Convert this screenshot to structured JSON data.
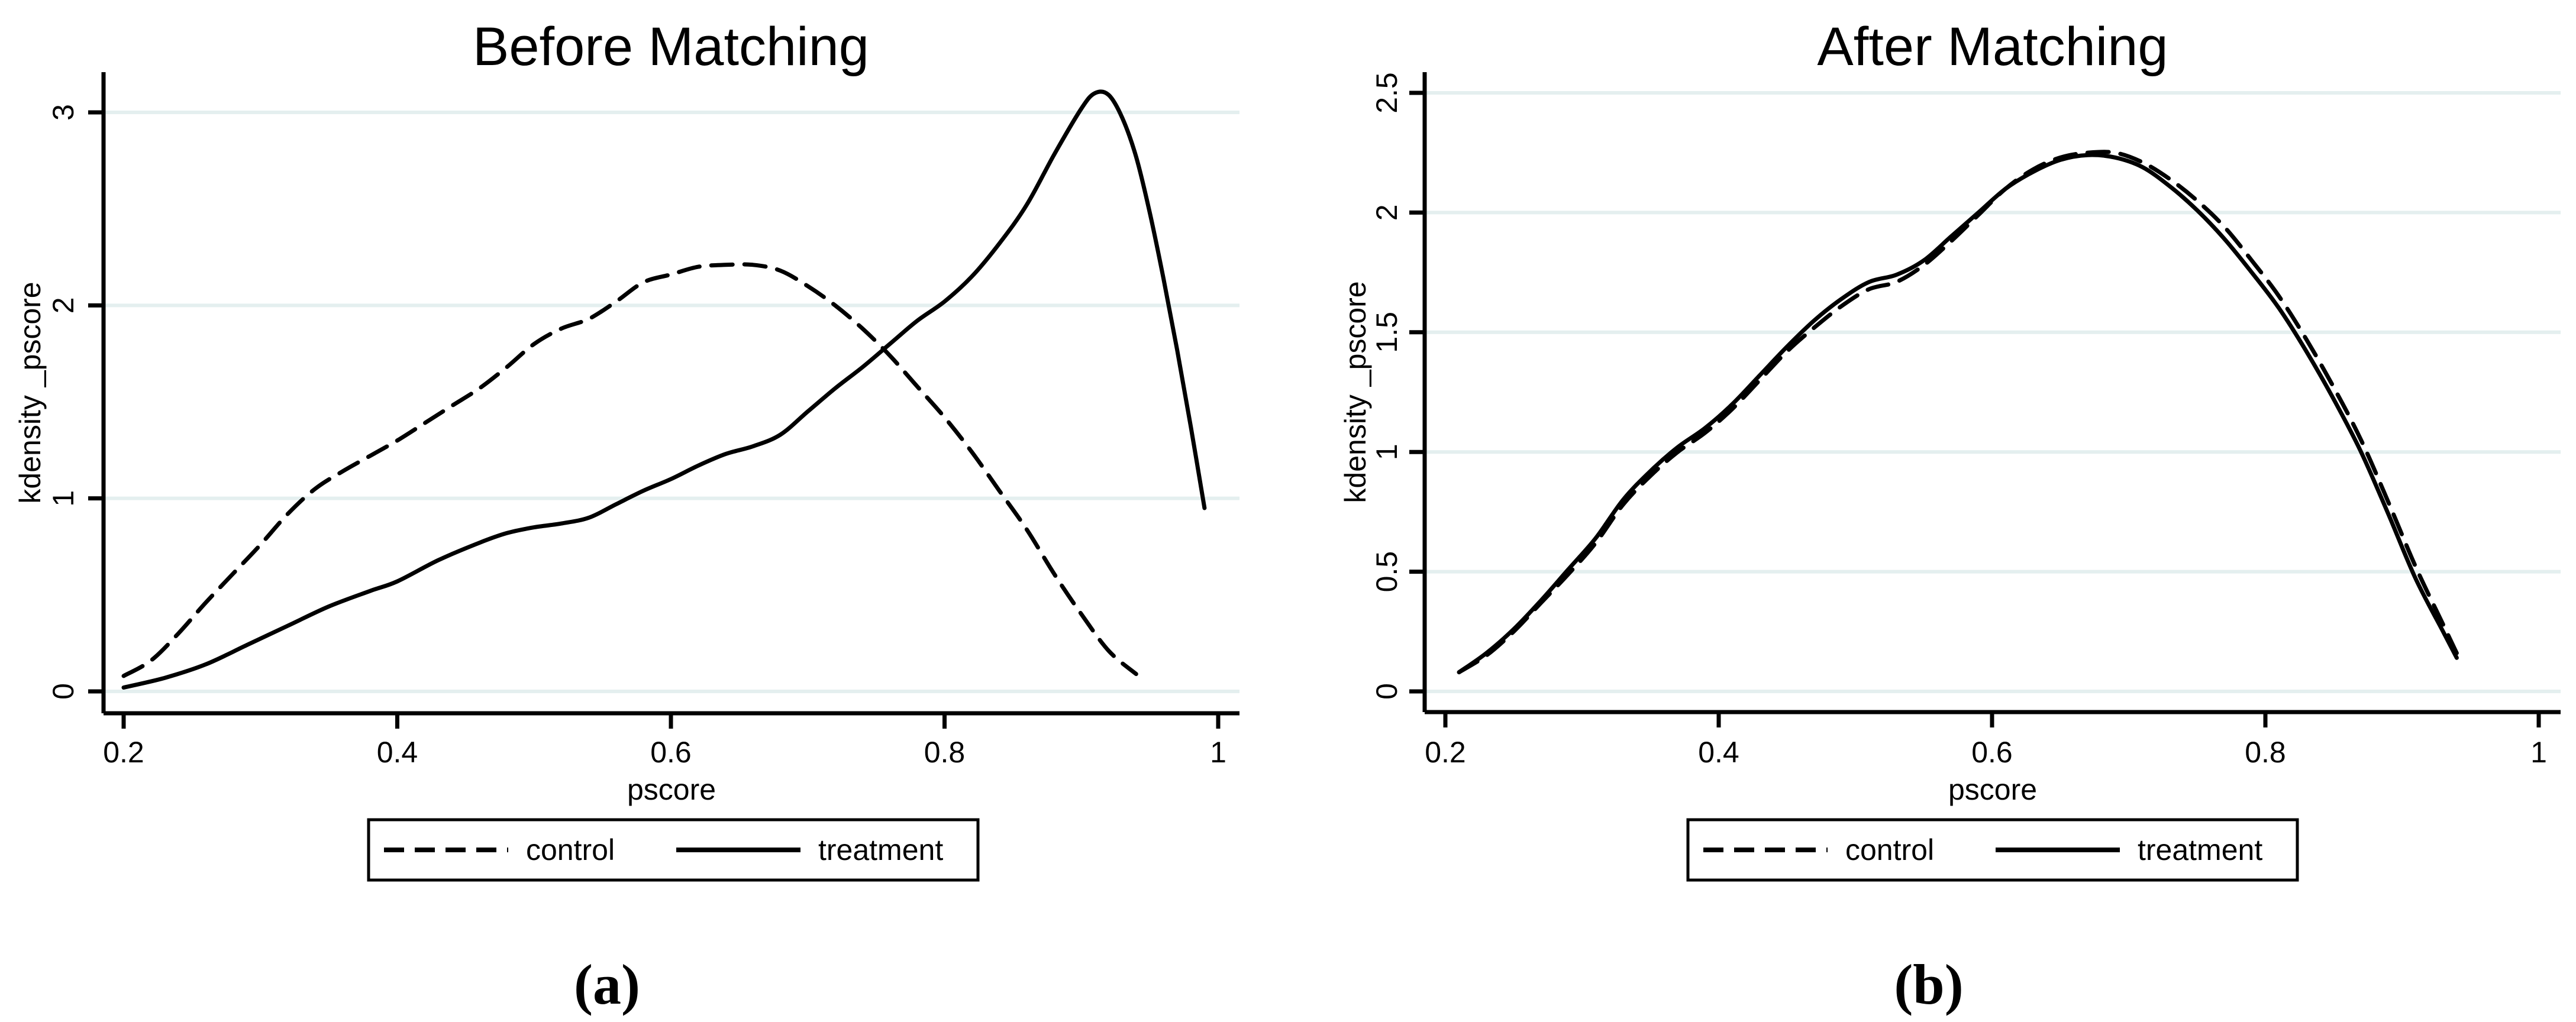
{
  "figure": {
    "background": "#ffffff",
    "grid_color": "#e4efef",
    "axis_color": "#000000",
    "curve_color": "#000000"
  },
  "chart_data": [
    {
      "type": "line",
      "title": "Before Matching",
      "xlabel": "pscore",
      "ylabel": "kdensity _pscore",
      "caption": "(a)",
      "xlim": [
        0.2,
        1.0
      ],
      "ylim": [
        0,
        3.2
      ],
      "grid": true,
      "legend_position": "bottom",
      "x_ticks": [
        0.2,
        0.4,
        0.6,
        0.8,
        1
      ],
      "x_tick_labels": [
        "0.2",
        "0.4",
        "0.6",
        "0.8",
        "1"
      ],
      "y_ticks": [
        0,
        1,
        2,
        3
      ],
      "y_tick_labels": [
        "0",
        "1",
        "2",
        "3"
      ],
      "series": [
        {
          "name": "control",
          "line_style": "dashed",
          "color": "#000000",
          "points": [
            [
              0.2,
              0.08
            ],
            [
              0.22,
              0.16
            ],
            [
              0.24,
              0.3
            ],
            [
              0.26,
              0.46
            ],
            [
              0.28,
              0.61
            ],
            [
              0.3,
              0.76
            ],
            [
              0.32,
              0.92
            ],
            [
              0.34,
              1.05
            ],
            [
              0.36,
              1.14
            ],
            [
              0.38,
              1.22
            ],
            [
              0.4,
              1.3
            ],
            [
              0.42,
              1.39
            ],
            [
              0.44,
              1.48
            ],
            [
              0.46,
              1.57
            ],
            [
              0.48,
              1.68
            ],
            [
              0.5,
              1.8
            ],
            [
              0.52,
              1.88
            ],
            [
              0.54,
              1.93
            ],
            [
              0.56,
              2.02
            ],
            [
              0.58,
              2.12
            ],
            [
              0.6,
              2.16
            ],
            [
              0.62,
              2.2
            ],
            [
              0.64,
              2.21
            ],
            [
              0.66,
              2.21
            ],
            [
              0.68,
              2.18
            ],
            [
              0.7,
              2.1
            ],
            [
              0.72,
              2.0
            ],
            [
              0.74,
              1.88
            ],
            [
              0.76,
              1.74
            ],
            [
              0.78,
              1.58
            ],
            [
              0.8,
              1.42
            ],
            [
              0.82,
              1.24
            ],
            [
              0.84,
              1.04
            ],
            [
              0.86,
              0.84
            ],
            [
              0.88,
              0.61
            ],
            [
              0.9,
              0.4
            ],
            [
              0.92,
              0.21
            ],
            [
              0.94,
              0.09
            ]
          ]
        },
        {
          "name": "treatment",
          "line_style": "solid",
          "color": "#000000",
          "points": [
            [
              0.2,
              0.02
            ],
            [
              0.23,
              0.07
            ],
            [
              0.26,
              0.14
            ],
            [
              0.29,
              0.24
            ],
            [
              0.32,
              0.34
            ],
            [
              0.35,
              0.44
            ],
            [
              0.38,
              0.52
            ],
            [
              0.4,
              0.57
            ],
            [
              0.43,
              0.68
            ],
            [
              0.46,
              0.77
            ],
            [
              0.48,
              0.82
            ],
            [
              0.5,
              0.85
            ],
            [
              0.52,
              0.87
            ],
            [
              0.54,
              0.9
            ],
            [
              0.56,
              0.97
            ],
            [
              0.58,
              1.04
            ],
            [
              0.6,
              1.1
            ],
            [
              0.62,
              1.17
            ],
            [
              0.64,
              1.23
            ],
            [
              0.66,
              1.27
            ],
            [
              0.68,
              1.33
            ],
            [
              0.7,
              1.45
            ],
            [
              0.72,
              1.57
            ],
            [
              0.74,
              1.68
            ],
            [
              0.76,
              1.8
            ],
            [
              0.78,
              1.92
            ],
            [
              0.8,
              2.02
            ],
            [
              0.82,
              2.15
            ],
            [
              0.84,
              2.32
            ],
            [
              0.86,
              2.52
            ],
            [
              0.88,
              2.78
            ],
            [
              0.9,
              3.02
            ],
            [
              0.91,
              3.1
            ],
            [
              0.92,
              3.09
            ],
            [
              0.93,
              2.97
            ],
            [
              0.94,
              2.77
            ],
            [
              0.95,
              2.48
            ],
            [
              0.96,
              2.14
            ],
            [
              0.97,
              1.77
            ],
            [
              0.98,
              1.37
            ],
            [
              0.99,
              0.95
            ]
          ]
        }
      ]
    },
    {
      "type": "line",
      "title": "After Matching",
      "xlabel": "pscore",
      "ylabel": "kdensity _pscore",
      "caption": "(b)",
      "xlim": [
        0.2,
        1.0
      ],
      "ylim": [
        0,
        2.6
      ],
      "grid": true,
      "legend_position": "bottom",
      "x_ticks": [
        0.2,
        0.4,
        0.6,
        0.8,
        1
      ],
      "x_tick_labels": [
        "0.2",
        "0.4",
        "0.6",
        "0.8",
        "1"
      ],
      "y_ticks": [
        0,
        0.5,
        1,
        1.5,
        2,
        2.5
      ],
      "y_tick_labels": [
        "0",
        "0.5",
        "1",
        "1.5",
        "2",
        "2.5"
      ],
      "series": [
        {
          "name": "control",
          "line_style": "dashed",
          "color": "#000000",
          "points": [
            [
              0.21,
              0.08
            ],
            [
              0.23,
              0.15
            ],
            [
              0.25,
              0.25
            ],
            [
              0.27,
              0.37
            ],
            [
              0.29,
              0.49
            ],
            [
              0.31,
              0.62
            ],
            [
              0.33,
              0.78
            ],
            [
              0.35,
              0.9
            ],
            [
              0.37,
              1.0
            ],
            [
              0.39,
              1.08
            ],
            [
              0.41,
              1.18
            ],
            [
              0.43,
              1.3
            ],
            [
              0.45,
              1.42
            ],
            [
              0.47,
              1.52
            ],
            [
              0.49,
              1.61
            ],
            [
              0.51,
              1.68
            ],
            [
              0.53,
              1.71
            ],
            [
              0.55,
              1.78
            ],
            [
              0.57,
              1.88
            ],
            [
              0.59,
              1.99
            ],
            [
              0.61,
              2.1
            ],
            [
              0.63,
              2.18
            ],
            [
              0.65,
              2.23
            ],
            [
              0.67,
              2.25
            ],
            [
              0.69,
              2.25
            ],
            [
              0.71,
              2.21
            ],
            [
              0.73,
              2.14
            ],
            [
              0.75,
              2.05
            ],
            [
              0.77,
              1.94
            ],
            [
              0.79,
              1.8
            ],
            [
              0.81,
              1.65
            ],
            [
              0.83,
              1.47
            ],
            [
              0.85,
              1.27
            ],
            [
              0.87,
              1.05
            ],
            [
              0.89,
              0.79
            ],
            [
              0.91,
              0.52
            ],
            [
              0.93,
              0.28
            ],
            [
              0.94,
              0.16
            ]
          ]
        },
        {
          "name": "treatment",
          "line_style": "solid",
          "color": "#000000",
          "points": [
            [
              0.21,
              0.08
            ],
            [
              0.23,
              0.16
            ],
            [
              0.25,
              0.26
            ],
            [
              0.27,
              0.38
            ],
            [
              0.29,
              0.51
            ],
            [
              0.31,
              0.64
            ],
            [
              0.33,
              0.8
            ],
            [
              0.35,
              0.92
            ],
            [
              0.37,
              1.02
            ],
            [
              0.39,
              1.1
            ],
            [
              0.41,
              1.2
            ],
            [
              0.43,
              1.32
            ],
            [
              0.45,
              1.44
            ],
            [
              0.47,
              1.55
            ],
            [
              0.49,
              1.64
            ],
            [
              0.51,
              1.71
            ],
            [
              0.53,
              1.74
            ],
            [
              0.55,
              1.8
            ],
            [
              0.57,
              1.9
            ],
            [
              0.59,
              2.0
            ],
            [
              0.61,
              2.1
            ],
            [
              0.63,
              2.17
            ],
            [
              0.65,
              2.22
            ],
            [
              0.67,
              2.24
            ],
            [
              0.69,
              2.23
            ],
            [
              0.71,
              2.19
            ],
            [
              0.73,
              2.11
            ],
            [
              0.75,
              2.01
            ],
            [
              0.77,
              1.89
            ],
            [
              0.79,
              1.75
            ],
            [
              0.81,
              1.6
            ],
            [
              0.83,
              1.42
            ],
            [
              0.85,
              1.22
            ],
            [
              0.87,
              1.0
            ],
            [
              0.89,
              0.74
            ],
            [
              0.91,
              0.47
            ],
            [
              0.93,
              0.25
            ],
            [
              0.94,
              0.14
            ]
          ]
        }
      ]
    }
  ]
}
